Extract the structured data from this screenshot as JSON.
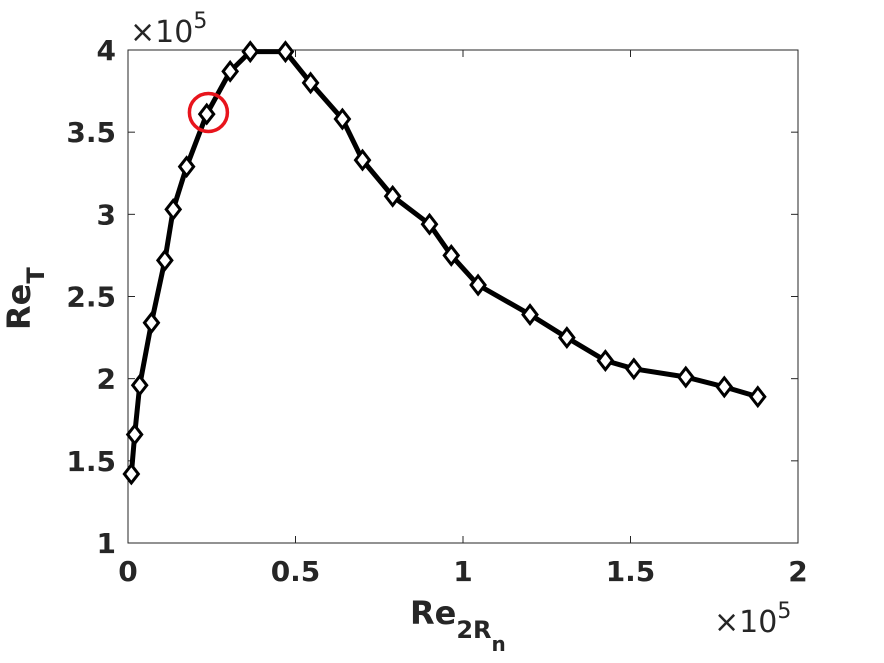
{
  "chart_data": {
    "type": "line",
    "xlabel": {
      "base": "Re",
      "sub": "2R",
      "subsub": "n"
    },
    "ylabel": {
      "base": "Re",
      "sub": "T"
    },
    "x_multiplier": {
      "times": "×",
      "base": "10",
      "exp": "5"
    },
    "y_multiplier": {
      "times": "×",
      "base": "10",
      "exp": "5"
    },
    "xlim": [
      0,
      2
    ],
    "ylim": [
      1,
      4
    ],
    "xticks": [
      0,
      0.5,
      1,
      1.5,
      2
    ],
    "xtick_labels": [
      "0",
      "0.5",
      "1",
      "1.5",
      "2"
    ],
    "yticks": [
      1,
      1.5,
      2,
      2.5,
      3,
      3.5,
      4
    ],
    "ytick_labels": [
      "1",
      "1.5",
      "2",
      "2.5",
      "3",
      "3.5",
      "4"
    ],
    "grid": false,
    "line_color": "#000000",
    "marker": "diamond",
    "highlight_color": "#e8141c",
    "series": [
      {
        "x": [
          0.01,
          0.02,
          0.035,
          0.07,
          0.11,
          0.135,
          0.175,
          0.235,
          0.305,
          0.365,
          0.47,
          0.545,
          0.64,
          0.7,
          0.79,
          0.9,
          0.965,
          1.045,
          1.2,
          1.31,
          1.425,
          1.51,
          1.665,
          1.78,
          1.88
        ],
        "y": [
          1.42,
          1.66,
          1.96,
          2.34,
          2.72,
          3.03,
          3.29,
          3.61,
          3.87,
          3.99,
          3.99,
          3.8,
          3.58,
          3.33,
          3.11,
          2.94,
          2.75,
          2.57,
          2.39,
          2.25,
          2.11,
          2.06,
          2.01,
          1.95,
          1.89
        ]
      }
    ],
    "highlight_point": {
      "x": 0.24,
      "y": 3.62
    }
  }
}
